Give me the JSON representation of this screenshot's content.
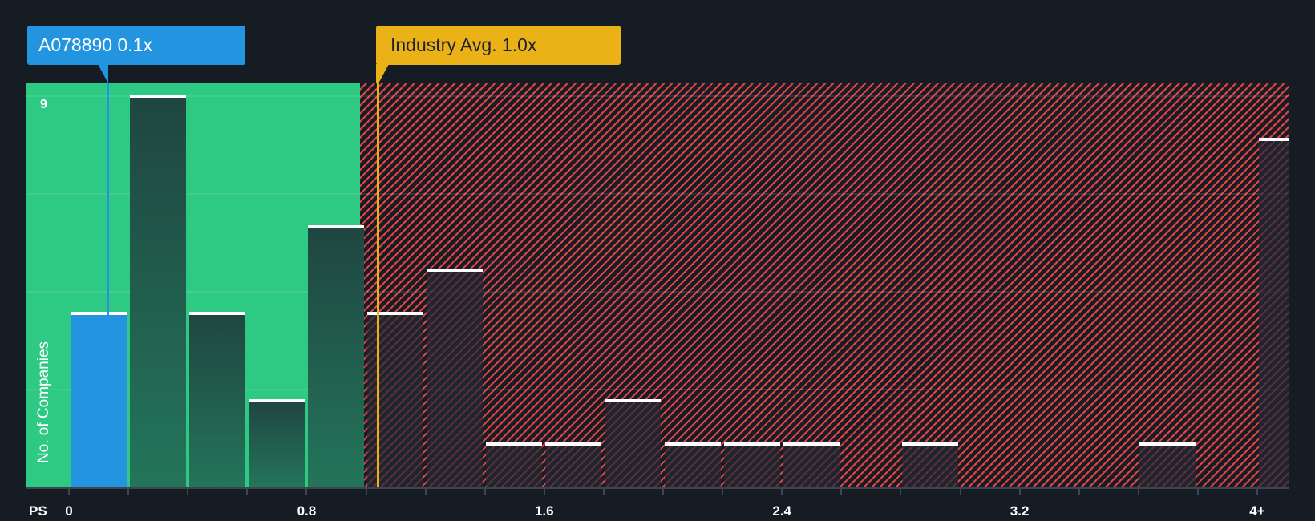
{
  "colors": {
    "background": "#161c24",
    "green_zone": "#2ec982",
    "highlight_blue": "#2394df",
    "industry_yellow": "#ebb218",
    "hatch_red": "#e04444"
  },
  "callouts": {
    "company": {
      "label": "A078890 0.1x",
      "value": 0.13
    },
    "industry": {
      "label": "Industry Avg. 1.0x",
      "value": 1.04
    }
  },
  "axis": {
    "x_name": "PS",
    "y_name": "No. of Companies",
    "y_max_label": "9"
  },
  "chart_data": {
    "type": "bar",
    "title": "",
    "xlabel": "PS",
    "ylabel": "No. of Companies",
    "ylim": [
      0,
      9
    ],
    "xlim": [
      0,
      4.1
    ],
    "x_ticks": [
      "0",
      "0.8",
      "1.6",
      "2.4",
      "3.2",
      "4+"
    ],
    "x_tick_values": [
      0,
      0.8,
      1.6,
      2.4,
      3.2,
      4.0
    ],
    "bin_width": 0.2,
    "categories": [
      "0-0.2",
      "0.2-0.4",
      "0.4-0.6",
      "0.6-0.8",
      "0.8-1.0",
      "1.0-1.2",
      "1.2-1.4",
      "1.4-1.6",
      "1.6-1.8",
      "1.8-2.0",
      "2.0-2.2",
      "2.2-2.4",
      "2.4-2.6",
      "2.6-2.8",
      "2.8-3.0",
      "3.0-3.2",
      "3.2-3.4",
      "3.4-3.6",
      "3.6-3.8",
      "3.8-4.0",
      "4+"
    ],
    "bin_starts": [
      0,
      0.2,
      0.4,
      0.6,
      0.8,
      1.0,
      1.2,
      1.4,
      1.6,
      1.8,
      2.0,
      2.2,
      2.4,
      2.6,
      2.8,
      3.0,
      3.2,
      3.4,
      3.6,
      3.8,
      4.0
    ],
    "values": [
      4,
      9,
      4,
      2,
      6,
      4,
      5,
      1,
      1,
      2,
      1,
      1,
      1,
      0,
      1,
      0,
      0,
      0,
      1,
      0,
      8
    ],
    "highlight_bin": 0,
    "company_value": 0.1,
    "industry_avg": 1.0,
    "fair_zone_max": 0.98,
    "gridlines": [
      0,
      2.25,
      4.5,
      6.75,
      9
    ],
    "grid": true,
    "legend": []
  }
}
